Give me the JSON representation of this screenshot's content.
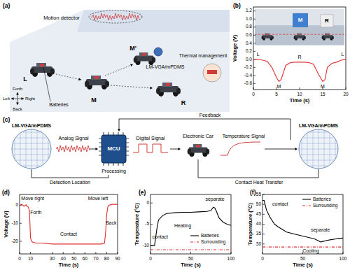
{
  "panel_labels": [
    "(a)",
    "(b)",
    "(c)",
    "(d)",
    "(e)",
    "(f)"
  ],
  "diagram_a": {
    "motion_detector": "Motion detector",
    "sensor": "LM-VGA/mPDMS",
    "thermal": "Thermal management",
    "batteries": "Batteries",
    "positions": [
      "L",
      "M",
      "M'",
      "R"
    ],
    "compass": {
      "forth": "Forth",
      "back": "Back",
      "left": "Left",
      "right": "Right"
    }
  },
  "photo_b": {
    "labels": [
      "M",
      "R"
    ]
  },
  "diagram_c": {
    "left_sensor": "LM-VGA/mPDMS",
    "right_sensor": "LM-VGA/mPDMS",
    "analog": "Analog Signal",
    "mcu": "MCU",
    "processing": "Processing",
    "digital": "Digital Signal",
    "car": "Electronic Car",
    "temperature": "Temperature Signal",
    "feedback": "Feedback",
    "detection": "Detection Location",
    "contact": "Contact Heat Transfer"
  },
  "chart_data": [
    {
      "type": "line",
      "x_label": "Time (s)",
      "y_label": "Voltage (V)",
      "xlim": [
        0,
        20
      ],
      "xticks": [
        0,
        5,
        10,
        15,
        20
      ],
      "ylim": [
        -0.75,
        1.3
      ],
      "yticks": [
        -0.6,
        -0.4,
        -0.2,
        {
          "value": 0,
          "label": "0.0"
        },
        0.2,
        0.4,
        0.6,
        0.8,
        {
          "value": 1,
          "label": "1.0"
        },
        1.2
      ],
      "grid": false,
      "x": [
        0,
        1,
        2,
        3,
        4,
        5,
        5.5,
        6,
        7,
        8,
        9,
        10,
        11,
        12,
        13,
        14,
        15,
        15.5,
        16,
        17,
        18,
        19,
        20
      ],
      "series": [
        {
          "color": "#e03030",
          "line_style": "solid",
          "values": [
            0,
            0,
            -0.02,
            -0.05,
            -0.2,
            -0.45,
            -0.55,
            -0.5,
            -0.15,
            -0.08,
            -0.07,
            -0.07,
            -0.07,
            -0.08,
            -0.12,
            -0.35,
            -0.55,
            -0.5,
            -0.2,
            -0.1,
            -0.07,
            -0.02,
            0
          ]
        }
      ],
      "annotations": [
        {
          "text": "L",
          "x": 1,
          "y": 0.12
        },
        {
          "text": "M",
          "x": 5.5,
          "y": -0.68
        },
        {
          "text": "R",
          "x": 10,
          "y": 0.05
        },
        {
          "text": "M",
          "x": 15,
          "y": -0.68
        },
        {
          "text": "L",
          "x": 19.3,
          "y": 0.12
        }
      ]
    },
    {
      "type": "line",
      "x_label": "Time (s)",
      "y_label": "Voltage (V)",
      "xlim": [
        0,
        90
      ],
      "xticks": [
        0,
        10,
        30,
        40,
        50,
        60,
        70,
        80,
        90
      ],
      "ylim": [
        -27,
        6
      ],
      "yticks": [
        -20,
        -10,
        0
      ],
      "grid": false,
      "x": [
        0,
        2,
        4,
        6,
        7,
        8,
        9,
        9.5,
        10,
        11,
        12,
        15,
        20,
        30,
        40,
        50,
        60,
        70,
        75,
        78,
        79,
        80,
        81,
        82,
        85,
        90
      ],
      "series": [
        {
          "color": "#e03030",
          "line_style": "solid",
          "values": [
            0,
            0.5,
            -0.5,
            0.3,
            -0.8,
            -1,
            -3,
            -10,
            -18,
            -20,
            -20.5,
            -21,
            -21,
            -21.5,
            -21.5,
            -21.5,
            -21.5,
            -21.5,
            -21.5,
            -21,
            -15,
            -5,
            -1,
            0,
            0.5,
            0.5
          ]
        }
      ],
      "annotations": [
        {
          "text": "Move right",
          "x": 12,
          "y": 3.5
        },
        {
          "text": "Forth",
          "x": 15,
          "y": -4
        },
        {
          "text": "Contact",
          "x": 45,
          "y": -16
        },
        {
          "text": "Move left",
          "x": 72,
          "y": 3.5
        },
        {
          "text": "Back",
          "x": 84,
          "y": -10
        }
      ]
    },
    {
      "type": "line",
      "x_label": "Time (s)",
      "y_label": "Temperature (°C)",
      "xlim": [
        0,
        100
      ],
      "xticks": [
        0,
        50,
        100
      ],
      "ylim": [
        -12,
        2
      ],
      "yticks": [
        -10,
        -5,
        0
      ],
      "grid": false,
      "legend": "lower right",
      "x": [
        0,
        5,
        8,
        10,
        15,
        20,
        30,
        40,
        50,
        60,
        70,
        75,
        78,
        80,
        82,
        85,
        90,
        95,
        100
      ],
      "series": [
        {
          "name": "Batteries",
          "color": "#000000",
          "line_style": "solid",
          "values": [
            -10,
            -10,
            -6,
            -4,
            -3,
            -2.5,
            -2.3,
            -2.2,
            -2.2,
            -2.1,
            -2,
            -1.8,
            -1,
            -1.2,
            -2,
            -3.5,
            -4.5,
            -5,
            -5.3
          ]
        },
        {
          "name": "Surrounding",
          "color": "#e03030",
          "line_style": "dashdot",
          "values": [
            -11,
            -11,
            -11,
            -11,
            -11,
            -11,
            -11,
            -11,
            -11,
            -11,
            -11,
            -11,
            -11,
            -11,
            -11,
            -11,
            -11,
            -11,
            -11
          ]
        }
      ],
      "annotations": [
        {
          "text": "contact",
          "x": 12,
          "y": -8
        },
        {
          "text": "separate",
          "x": 80,
          "y": 0.8
        },
        {
          "text": "Heating",
          "x": 40,
          "y": -5.5
        }
      ]
    },
    {
      "type": "line",
      "x_label": "Time (s)",
      "y_label": "Temperature (°C)",
      "xlim": [
        0,
        100
      ],
      "xticks": [
        0,
        50,
        100
      ],
      "ylim": [
        25,
        55
      ],
      "yticks": [
        30,
        35,
        40,
        45,
        50,
        55
      ],
      "grid": false,
      "legend": "upper right",
      "x": [
        0,
        2,
        5,
        10,
        15,
        20,
        30,
        40,
        50,
        60,
        65,
        70,
        72,
        75,
        80,
        85,
        90,
        95,
        100
      ],
      "series": [
        {
          "name": "Batteries",
          "color": "#000000",
          "line_style": "solid",
          "values": [
            52,
            52,
            47,
            43,
            40,
            38.5,
            36,
            35,
            34,
            33,
            32.5,
            31.5,
            31,
            31.3,
            31.8,
            32.2,
            32.5,
            32.8,
            33
          ]
        },
        {
          "name": "Surrounding",
          "color": "#e03030",
          "line_style": "dashdot",
          "values": [
            28.5,
            28.5,
            28.5,
            28.5,
            28.5,
            28.5,
            28.5,
            28.5,
            28.5,
            28.5,
            28.5,
            28.5,
            28.5,
            28.5,
            28.5,
            28.5,
            28.5,
            28.5,
            28.5
          ]
        }
      ],
      "annotations": [
        {
          "text": "contact",
          "x": 22,
          "y": 50
        },
        {
          "text": "separate",
          "x": 72,
          "y": 37
        },
        {
          "text": "Cooling",
          "x": 60,
          "y": 26.5
        }
      ]
    }
  ]
}
